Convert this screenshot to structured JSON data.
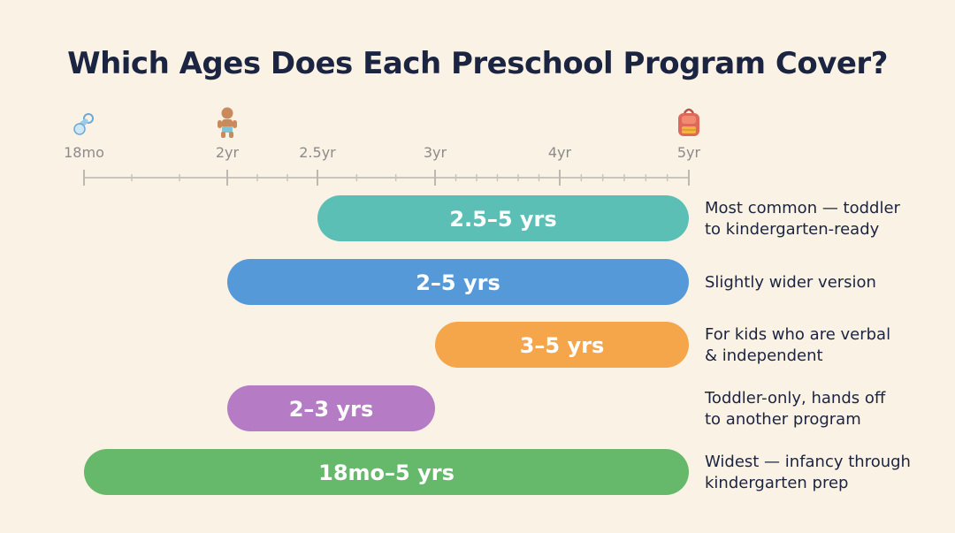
{
  "title": "Which Ages Does Each Preschool Program Cover?",
  "chart_data": {
    "type": "bar",
    "orientation": "horizontal-range",
    "title": "Which Ages Does Each Preschool Program Cover?",
    "xlabel": "",
    "ylabel": "",
    "xlim": [
      1.5,
      5
    ],
    "x_unit": "years",
    "grid": false,
    "ticks": [
      {
        "value": 1.5,
        "label": "18mo"
      },
      {
        "value": 2,
        "label": "2yr"
      },
      {
        "value": 2.5,
        "label": "2.5yr"
      },
      {
        "value": 3,
        "label": "3yr"
      },
      {
        "value": 4,
        "label": "4yr"
      },
      {
        "value": 5,
        "label": "5yr"
      }
    ],
    "tick_icons": [
      {
        "value": 1.5,
        "icon": "pacifier-icon"
      },
      {
        "value": 2,
        "icon": "baby-icon"
      },
      {
        "value": 5,
        "icon": "backpack-icon"
      }
    ],
    "series": [
      {
        "label": "2.5–5 yrs",
        "start": 2.5,
        "end": 5,
        "color": "#5bbfb5",
        "note": [
          "Most common — toddler",
          "to kindergarten-ready"
        ]
      },
      {
        "label": "2–5 yrs",
        "start": 2,
        "end": 5,
        "color": "#5599d9",
        "note": [
          "Slightly wider version"
        ]
      },
      {
        "label": "3–5 yrs",
        "start": 3,
        "end": 5,
        "color": "#f5a54a",
        "note": [
          "For kids who are verbal",
          "& independent"
        ]
      },
      {
        "label": "2–3 yrs",
        "start": 2,
        "end": 3,
        "color": "#b57cc5",
        "note": [
          "Toddler-only, hands off",
          "to another program"
        ]
      },
      {
        "label": "18mo–5 yrs",
        "start": 1.5,
        "end": 5,
        "color": "#66b96b",
        "note": [
          "Widest — infancy through",
          "kindergarten prep"
        ]
      }
    ]
  }
}
